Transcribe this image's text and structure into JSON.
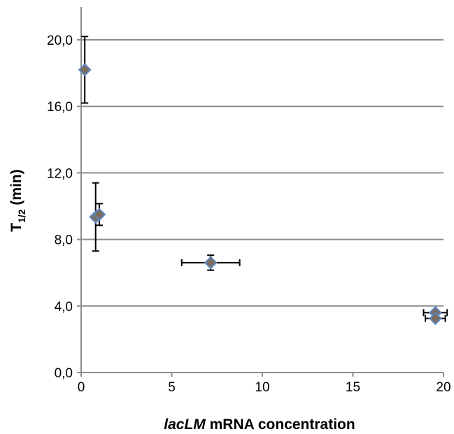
{
  "chart_data": {
    "type": "scatter",
    "title": "",
    "xlabel": {
      "italic": "lacLM",
      "rest": " mRNA concentration"
    },
    "ylabel": {
      "main": "T",
      "sub": "1/2",
      "rest": " (min)"
    },
    "xlim": [
      0,
      20
    ],
    "ylim": [
      0,
      20
    ],
    "grid": "horizontal",
    "x_ticks": [
      {
        "value": 0,
        "label": "0"
      },
      {
        "value": 5,
        "label": "5"
      },
      {
        "value": 10,
        "label": "10"
      },
      {
        "value": 15,
        "label": "15"
      },
      {
        "value": 20,
        "label": "20"
      }
    ],
    "y_ticks": [
      {
        "value": 0,
        "label": "0,0"
      },
      {
        "value": 4,
        "label": "4,0"
      },
      {
        "value": 8,
        "label": "8,0"
      },
      {
        "value": 12,
        "label": "12,0"
      },
      {
        "value": 16,
        "label": "16,0"
      },
      {
        "value": 20,
        "label": "20,0"
      }
    ],
    "points": [
      {
        "x": 0.2,
        "y": 18.2,
        "yerr": 2.0,
        "xerr": 0
      },
      {
        "x": 0.8,
        "y": 9.35,
        "yerr": 2.05,
        "xerr": 0
      },
      {
        "x": 1.0,
        "y": 9.5,
        "yerr": 0.65,
        "xerr": 0
      },
      {
        "x": 7.15,
        "y": 6.6,
        "yerr": 0.45,
        "xerr": 1.6
      },
      {
        "x": 19.55,
        "y": 3.6,
        "yerr": 0,
        "xerr": 0.65
      },
      {
        "x": 19.55,
        "y": 3.25,
        "yerr": 0,
        "xerr": 0.55
      }
    ],
    "colors": {
      "marker_fill": "#7f6c60",
      "marker_stroke": "#5b86c0",
      "grid": "#8c8c8c"
    }
  }
}
